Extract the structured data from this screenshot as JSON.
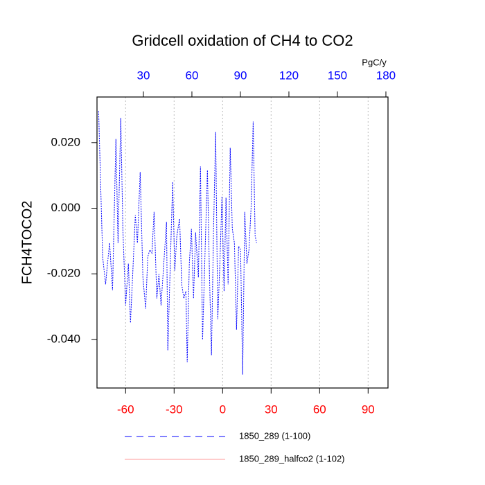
{
  "chart_data": {
    "type": "line",
    "title": "Gridcell oxidation of CH4 to CO2",
    "y_label": "FCH4TOCO2",
    "x2_label": "PgC/y",
    "xlim": [
      -77.7,
      102.3
    ],
    "xticks": [
      -60,
      -30,
      0,
      30,
      60,
      90
    ],
    "x_tick_color": "#ff0000",
    "x2lim": [
      1.3,
      181.3
    ],
    "x2ticks": [
      30,
      60,
      90,
      120,
      150,
      180
    ],
    "x2_tick_color": "#0000ff",
    "ylim": [
      -0.0548,
      0.0339
    ],
    "yticks": [
      {
        "value": 0.02,
        "label": "0.020"
      },
      {
        "value": 0,
        "label": "0.000"
      },
      {
        "value": -0.02,
        "label": "-0.020"
      },
      {
        "value": -0.04,
        "label": "-0.040"
      }
    ],
    "grid": true,
    "series": [
      {
        "name": "1850_289 (1-100)",
        "color": "#0000ff",
        "dashed": true,
        "x": [
          -76.7,
          -74.2,
          -72.4,
          -71.2,
          -69.9,
          -68.1,
          -66.0,
          -64.7,
          -63.0,
          -61.7,
          -60.0,
          -58.3,
          -57.0,
          -55.7,
          -54.0,
          -52.7,
          -51.0,
          -49.3,
          -47.6,
          -46.3,
          -45.0,
          -43.7,
          -42.4,
          -40.7,
          -39.4,
          -38.1,
          -36.4,
          -34.7,
          -33.9,
          -32.6,
          -30.9,
          -29.6,
          -28.3,
          -26.6,
          -25.3,
          -24.0,
          -22.7,
          -21.9,
          -20.6,
          -19.3,
          -18.0,
          -16.7,
          -15.0,
          -13.7,
          -12.4,
          -10.7,
          -9.4,
          -8.1,
          -6.9,
          -5.6,
          -4.3,
          -3.0,
          -1.7,
          -0.4,
          0.9,
          2.1,
          3.4,
          4.7,
          6.0,
          7.3,
          8.6,
          9.9,
          11.1,
          12.4,
          13.7,
          15.0,
          16.3,
          17.6,
          18.9,
          20.1,
          21.0
        ],
        "values": [
          0.0296,
          -0.0148,
          -0.0232,
          -0.0169,
          -0.0106,
          -0.025,
          0.0211,
          -0.0106,
          0.0275,
          -0.0063,
          -0.0296,
          -0.0169,
          -0.0349,
          -0.0211,
          -0.0021,
          -0.0106,
          0.011,
          -0.0211,
          -0.0306,
          -0.0148,
          -0.0127,
          -0.0137,
          -0.0011,
          -0.0275,
          -0.0201,
          -0.0296,
          -0.0169,
          -0.0042,
          -0.0433,
          -0.0211,
          0.008,
          -0.019,
          -0.0084,
          -0.0032,
          -0.0232,
          -0.0275,
          -0.0253,
          -0.0469,
          -0.0169,
          -0.0063,
          -0.0275,
          -0.0074,
          -0.0211,
          0.0127,
          -0.0401,
          -0.0106,
          0.0116,
          -0.0211,
          -0.0448,
          -0.0063,
          0.0232,
          -0.0338,
          -0.0169,
          0.0036,
          -0.0253,
          0.0032,
          -0.0232,
          0.0184,
          -0.0063,
          -0.0106,
          -0.037,
          -0.0116,
          -0.0127,
          -0.0507,
          -0.0011,
          -0.0169,
          -0.0127,
          0,
          0.0264,
          -0.0084,
          -0.0106
        ]
      },
      {
        "name": "1850_289_halfco2 (1-102)",
        "color": "#ff9999",
        "dashed": false,
        "x": [],
        "values": []
      }
    ]
  }
}
